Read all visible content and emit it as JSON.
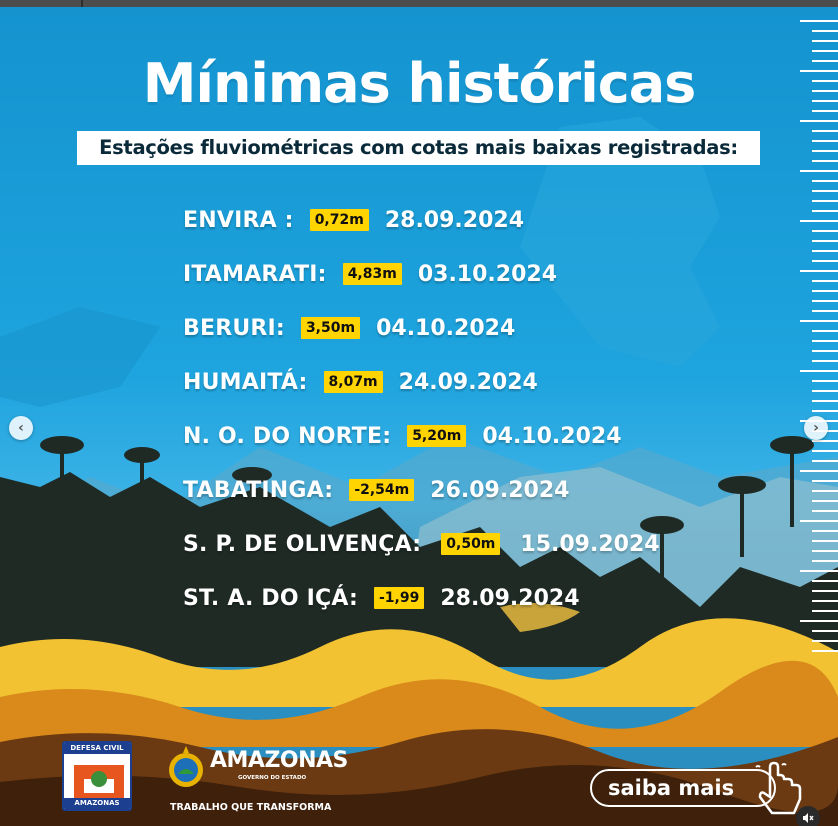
{
  "post": {
    "title": "Mínimas históricas",
    "subtitle": "Estações fluviométricas com cotas mais baixas registradas:",
    "stations": [
      {
        "name": "ENVIRA :",
        "value": "0,72m",
        "date": "28.09.2024"
      },
      {
        "name": "ITAMARATI:",
        "value": "4,83m",
        "date": "03.10.2024"
      },
      {
        "name": "BERURI:",
        "value": "3,50m",
        "date": "04.10.2024"
      },
      {
        "name": "HUMAITÁ:",
        "value": "8,07m",
        "date": "24.09.2024"
      },
      {
        "name": "N. O. DO NORTE:",
        "value": "5,20m",
        "date": "04.10.2024"
      },
      {
        "name": "TABATINGA:",
        "value": "-2,54m",
        "date": "26.09.2024"
      },
      {
        "name": "S. P. DE OLIVENÇA:",
        "value": "0,50m",
        "date": "15.09.2024"
      },
      {
        "name": "ST. A. DO IÇÁ:",
        "value": "-1,99",
        "date": "28.09.2024"
      }
    ],
    "logos": {
      "defesa_civil_top": "DEFESA CIVIL",
      "defesa_civil_bottom": "AMAZONAS",
      "amazonas_word": "AMAZONAS",
      "amazonas_gov": "GOVERNO DO ESTADO",
      "slogan": "TRABALHO QUE TRANSFORMA"
    },
    "cta_label": "saiba mais"
  },
  "controls": {
    "prev_icon": "chevron-left-icon",
    "next_icon": "chevron-right-icon",
    "mute_icon": "muted-speaker-icon"
  },
  "colors": {
    "sky": "#1ea4de",
    "highlight": "#ffd400",
    "river_yellow": "#f2c233",
    "earth_orange": "#d98a1a",
    "earth_brown": "#6b3a12"
  }
}
